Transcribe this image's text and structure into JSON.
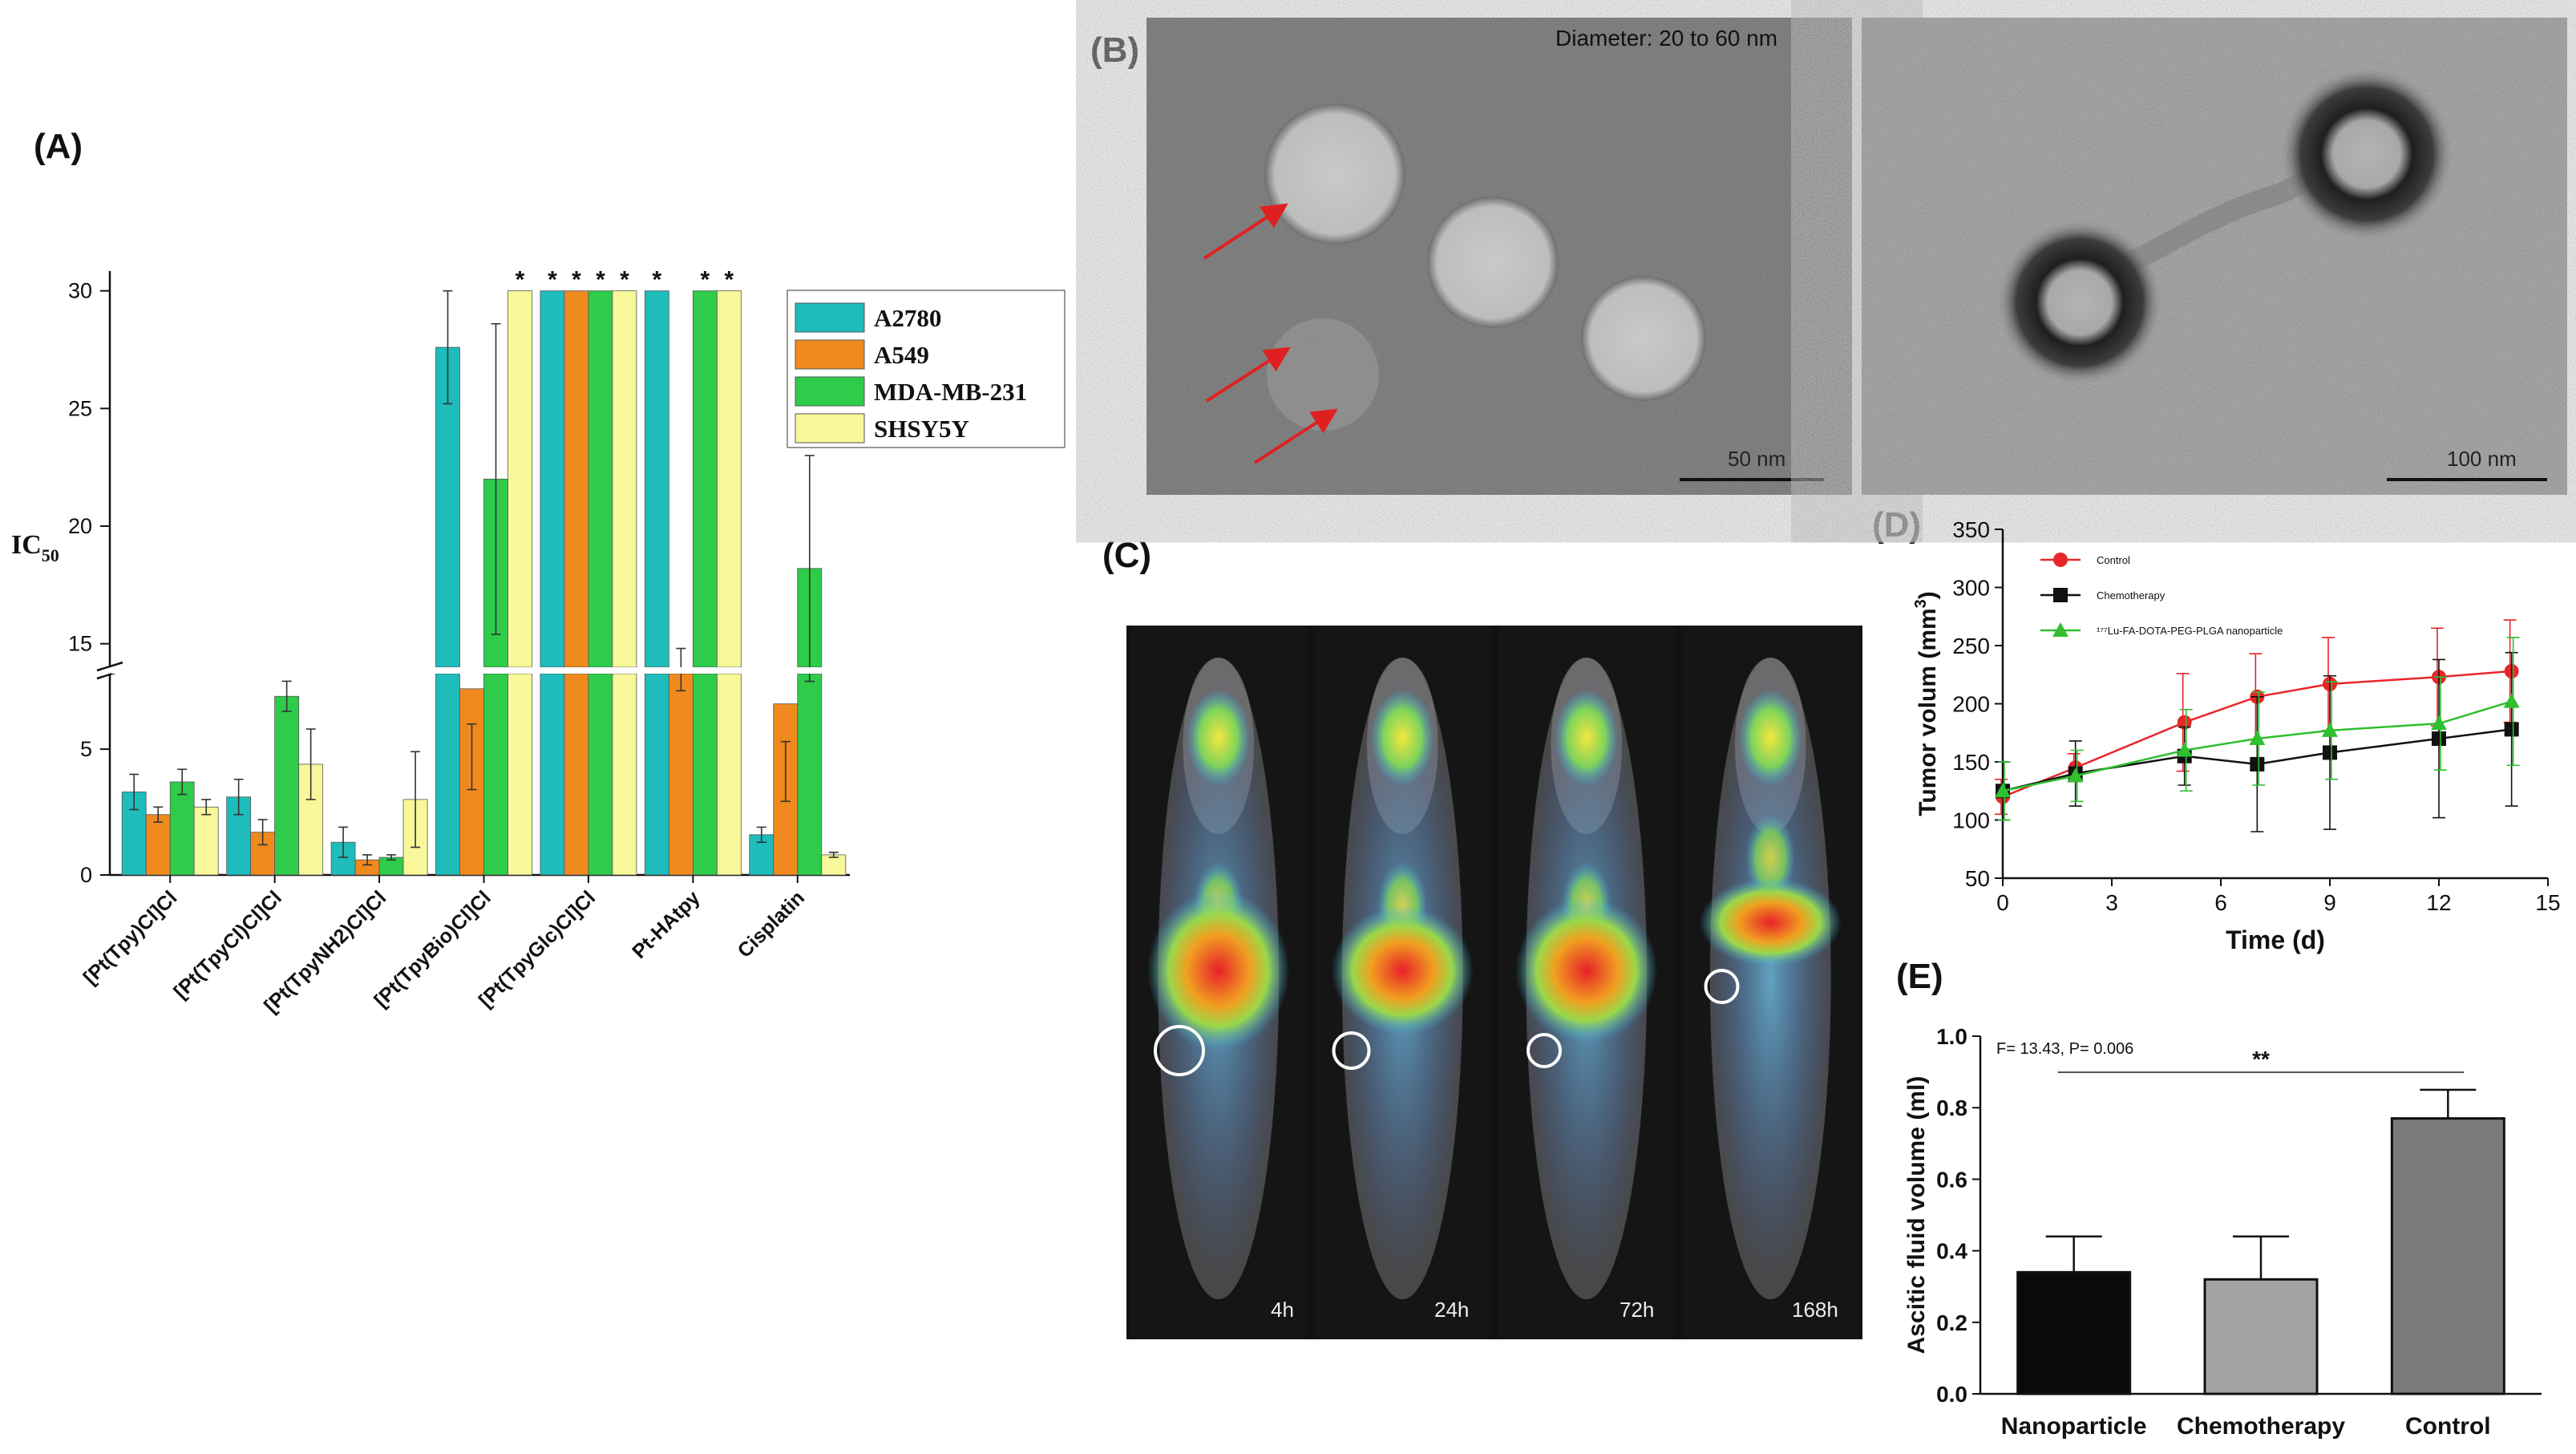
{
  "panels": {
    "a_label": "(A)",
    "b_label": "(B)",
    "c_label": "(C)",
    "d_label": "(D)",
    "e_label": "(E)"
  },
  "panel_b": {
    "caption": "Diameter: 20 to 60 nm",
    "scale_left": "50 nm",
    "scale_right": "100 nm"
  },
  "panel_c": {
    "timepoints": [
      "4h",
      "24h",
      "72h",
      "168h"
    ]
  },
  "chart_data": [
    {
      "id": "A",
      "type": "bar",
      "categories": [
        "[Pt(Tpy)Cl]Cl",
        "[Pt(TpyCl)Cl]Cl",
        "[Pt(TpyNH2)Cl]Cl",
        "[Pt(TpyBio)Cl]Cl",
        "[Pt(TpyGlc)Cl]Cl",
        "Pt-HAtpy",
        "Cisplatin"
      ],
      "ylabel": "IC",
      "ylabel_sub": "50",
      "lower_ticks": [
        "0",
        "5"
      ],
      "upper_ticks": [
        "15",
        "20",
        "25",
        "30"
      ],
      "lower_range": [
        0,
        8
      ],
      "upper_range": [
        14,
        30.5
      ],
      "series": [
        {
          "name": "A2780",
          "color": "#1fbcbc",
          "values": [
            3.3,
            3.1,
            1.3,
            27.6,
            30,
            30,
            1.6
          ],
          "errors": [
            0.7,
            0.7,
            0.6,
            2.4,
            0,
            0,
            0.3
          ]
        },
        {
          "name": "A549",
          "color": "#f08a1e",
          "values": [
            2.4,
            1.7,
            0.6,
            7.4,
            30,
            13.9,
            6.8
          ],
          "errors": [
            0.3,
            0.5,
            0.2,
            1.4,
            0,
            0.9,
            1.5
          ]
        },
        {
          "name": "MDA-MB-231",
          "color": "#2ecc4a",
          "values": [
            3.7,
            7.1,
            0.7,
            22.0,
            30,
            30,
            18.2
          ],
          "errors": [
            0.5,
            0.6,
            0.1,
            6.6,
            0,
            0,
            4.8
          ]
        },
        {
          "name": "SHSY5Y",
          "color": "#f8f89a",
          "values": [
            2.7,
            4.4,
            3.0,
            30,
            30,
            30,
            0.8
          ],
          "errors": [
            0.3,
            1.4,
            1.9,
            0,
            0,
            0,
            0.1
          ]
        }
      ],
      "stars": [
        {
          "category": 3,
          "series": 3
        },
        {
          "category": 4,
          "series": 0
        },
        {
          "category": 4,
          "series": 1
        },
        {
          "category": 4,
          "series": 2
        },
        {
          "category": 4,
          "series": 3
        },
        {
          "category": 5,
          "series": 0
        },
        {
          "category": 5,
          "series": 2
        },
        {
          "category": 5,
          "series": 3
        }
      ],
      "star_symbol": "*"
    },
    {
      "id": "D",
      "type": "line",
      "xlabel": "Time (d)",
      "ylabel": "Tumor volum  (mm",
      "ylabel_sup": "3",
      "ylabel_end": ")",
      "xlim": [
        0,
        15
      ],
      "ylim": [
        50,
        350
      ],
      "xticks": [
        0,
        3,
        6,
        9,
        12,
        15
      ],
      "yticks": [
        50,
        100,
        150,
        200,
        250,
        300,
        350
      ],
      "x": [
        0,
        2,
        5,
        7,
        9,
        12,
        14
      ],
      "series": [
        {
          "name": "Control",
          "color": "#e8262a",
          "marker": "circle",
          "values": [
            120,
            145,
            184,
            206,
            217,
            223,
            228
          ],
          "errors": [
            15,
            12,
            42,
            37,
            40,
            42,
            44
          ]
        },
        {
          "name": "Chemotherapy",
          "color": "#111111",
          "marker": "square",
          "values": [
            125,
            140,
            155,
            148,
            158,
            170,
            178
          ],
          "errors": [
            25,
            28,
            25,
            58,
            66,
            68,
            66
          ]
        },
        {
          "name": "¹⁷⁷Lu-FA-DOTA-PEG-PLGA nanoparticle",
          "color": "#2fbf2f",
          "marker": "triangle",
          "values": [
            125,
            138,
            160,
            170,
            177,
            183,
            202
          ],
          "errors": [
            25,
            22,
            35,
            40,
            42,
            40,
            55
          ]
        }
      ]
    },
    {
      "id": "E",
      "type": "bar",
      "categories": [
        "Nanoparticle",
        "Chemotherapy",
        "Control"
      ],
      "values": [
        0.34,
        0.32,
        0.77
      ],
      "errors": [
        0.1,
        0.12,
        0.08
      ],
      "colors": [
        "#0a0a0a",
        "#a3a3a6",
        "#7a7a7a"
      ],
      "ylabel": "Ascitic fluid volume (ml)",
      "ylim": [
        0,
        1.0
      ],
      "yticks": [
        "0.0",
        "0.2",
        "0.4",
        "0.6",
        "0.8",
        "1.0"
      ],
      "annotation": "F= 13.43, P= 0.006",
      "significance": "**"
    }
  ]
}
